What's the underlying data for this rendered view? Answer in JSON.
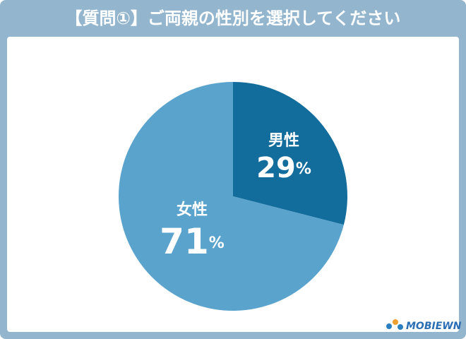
{
  "chart_data": {
    "type": "pie",
    "title": "【質問①】ご両親の性別を選択してください",
    "categories": [
      "男性",
      "女性"
    ],
    "values": [
      29,
      71
    ],
    "value_labels": [
      "29%",
      "71%"
    ],
    "colors": [
      "#126c9c",
      "#5aa3cd"
    ],
    "logo": "MOBIEWN"
  }
}
